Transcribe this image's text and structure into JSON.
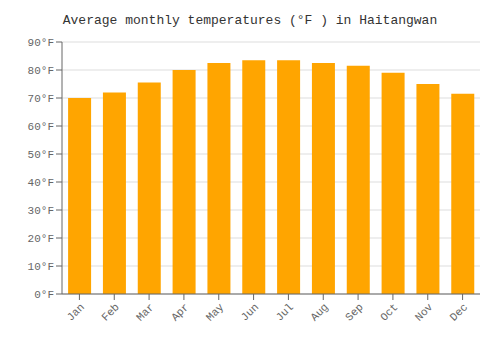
{
  "chart_data": {
    "type": "bar",
    "title": "Average monthly temperatures (°F ) in Haitangwan",
    "categories": [
      "Jan",
      "Feb",
      "Mar",
      "Apr",
      "May",
      "Jun",
      "Jul",
      "Aug",
      "Sep",
      "Oct",
      "Nov",
      "Dec"
    ],
    "values": [
      70,
      72,
      75.5,
      80,
      82.5,
      83.5,
      83.5,
      82.5,
      81.5,
      79,
      75,
      71.5
    ],
    "color": "#FFA500",
    "ylim": [
      0,
      90
    ],
    "yticks": [
      {
        "value": 0,
        "label": "0°F"
      },
      {
        "value": 10,
        "label": "10°F"
      },
      {
        "value": 20,
        "label": "20°F"
      },
      {
        "value": 30,
        "label": "30°F"
      },
      {
        "value": 40,
        "label": "40°F"
      },
      {
        "value": 50,
        "label": "50°F"
      },
      {
        "value": 60,
        "label": "60°F"
      },
      {
        "value": 70,
        "label": "70°F"
      },
      {
        "value": 80,
        "label": "80°F"
      },
      {
        "value": 90,
        "label": "90°F"
      }
    ],
    "grid": true
  }
}
